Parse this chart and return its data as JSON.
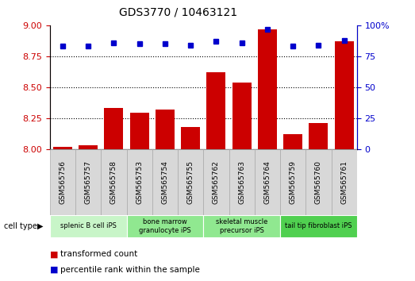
{
  "title": "GDS3770 / 10463121",
  "samples": [
    "GSM565756",
    "GSM565757",
    "GSM565758",
    "GSM565753",
    "GSM565754",
    "GSM565755",
    "GSM565762",
    "GSM565763",
    "GSM565764",
    "GSM565759",
    "GSM565760",
    "GSM565761"
  ],
  "transformed_count": [
    8.02,
    8.03,
    8.33,
    8.29,
    8.32,
    8.18,
    8.62,
    8.54,
    8.97,
    8.12,
    8.21,
    8.87
  ],
  "percentile_rank": [
    83,
    83,
    86,
    85,
    85,
    84,
    87,
    86,
    97,
    83,
    84,
    88
  ],
  "cell_types": [
    {
      "label": "splenic B cell iPS",
      "start": 0,
      "end": 3,
      "color": "#c8f5c8"
    },
    {
      "label": "bone marrow\ngranulocyte iPS",
      "start": 3,
      "end": 6,
      "color": "#90e890"
    },
    {
      "label": "skeletal muscle\nprecursor iPS",
      "start": 6,
      "end": 9,
      "color": "#90e890"
    },
    {
      "label": "tail tip fibroblast iPS",
      "start": 9,
      "end": 12,
      "color": "#50d050"
    }
  ],
  "bar_color": "#cc0000",
  "dot_color": "#0000cc",
  "ylim_left": [
    8.0,
    9.0
  ],
  "ylim_right": [
    0,
    100
  ],
  "yticks_left": [
    8.0,
    8.25,
    8.5,
    8.75,
    9.0
  ],
  "yticks_right": [
    0,
    25,
    50,
    75,
    100
  ],
  "grid_values": [
    8.25,
    8.5,
    8.75
  ],
  "grid_color": "black",
  "bg_color": "#ffffff",
  "left_axis_color": "#cc0000",
  "right_axis_color": "#0000cc",
  "tick_bg_color": "#d8d8d8"
}
